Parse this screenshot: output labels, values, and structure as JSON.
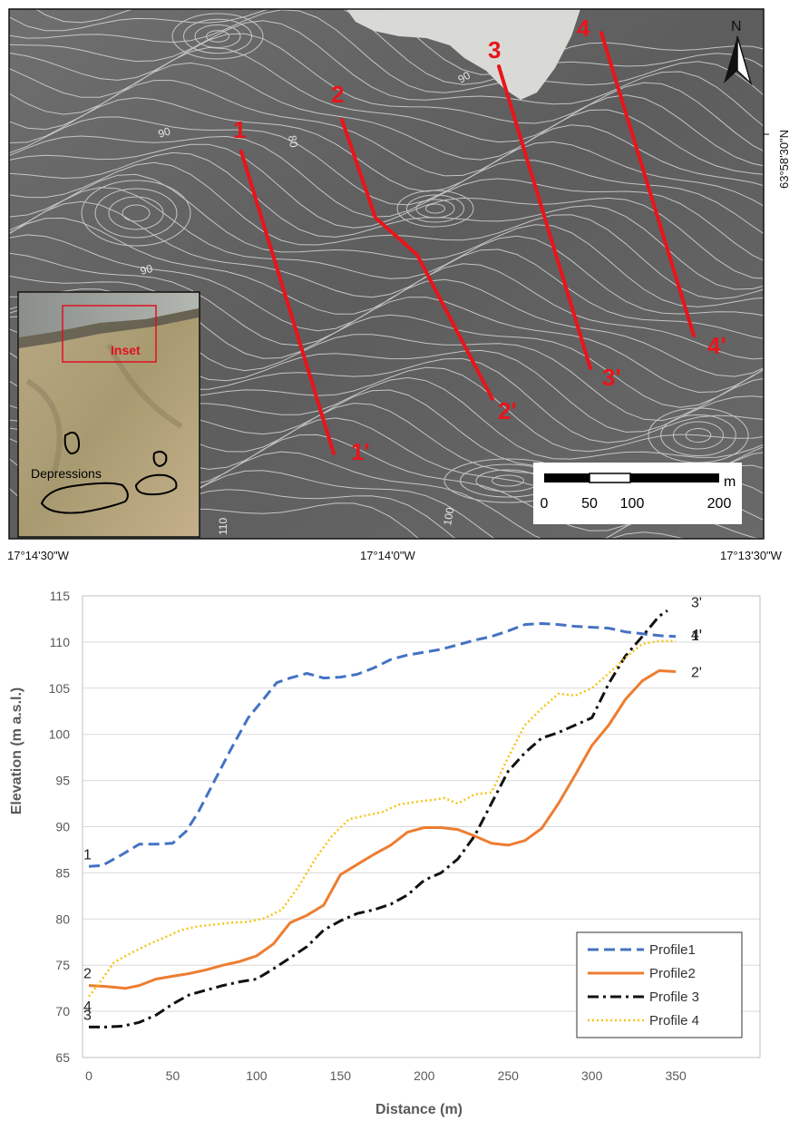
{
  "map": {
    "lon_labels": [
      "17°14'30\"W",
      "17°14'0\"W",
      "17°13'30\"W"
    ],
    "lat_label": "63°58'30\"N",
    "north_label": "N",
    "profile_lines": [
      {
        "start": "1",
        "end": "1'"
      },
      {
        "start": "2",
        "end": "2'"
      },
      {
        "start": "3",
        "end": "3'"
      },
      {
        "start": "4",
        "end": "4'"
      }
    ],
    "contour_labels": [
      "90",
      "80",
      "90",
      "100",
      "110",
      "90"
    ],
    "scale_bar": {
      "unit": "m",
      "ticks": [
        "0",
        "50",
        "100",
        "200"
      ]
    },
    "inset_map": {
      "inset_label": "Inset",
      "feature_label": "Depressions"
    },
    "colors": {
      "profile_line": "#e8151b",
      "inset_box": "#e01020",
      "depression_outline": "#000000"
    }
  },
  "chart_data": {
    "type": "line",
    "xlabel": "Distance (m)",
    "ylabel": "Elevation (m a.s.l.)",
    "xlim": [
      0,
      350
    ],
    "ylim": [
      65,
      115
    ],
    "xticks": [
      0,
      50,
      100,
      150,
      200,
      250,
      300,
      350
    ],
    "yticks": [
      65,
      70,
      75,
      80,
      85,
      90,
      95,
      100,
      105,
      110,
      115
    ],
    "grid": "horizontal",
    "legend_position": "bottom-right",
    "series": [
      {
        "name": "Profile1",
        "color": "#4472c4",
        "dash": "dashed",
        "start_label": "1",
        "end_label": "1'",
        "x": [
          0,
          8,
          20,
          30,
          40,
          50,
          58,
          65,
          75,
          85,
          95,
          105,
          112,
          120,
          130,
          140,
          150,
          160,
          170,
          180,
          190,
          200,
          210,
          220,
          230,
          240,
          250,
          260,
          270,
          280,
          290,
          300,
          310,
          320,
          330,
          340,
          350
        ],
        "y": [
          85.7,
          85.8,
          87.0,
          88.1,
          88.1,
          88.2,
          89.5,
          91.5,
          95.0,
          98.5,
          101.8,
          104.0,
          105.6,
          106.1,
          106.6,
          106.1,
          106.2,
          106.5,
          107.2,
          108.1,
          108.6,
          108.9,
          109.2,
          109.7,
          110.2,
          110.6,
          111.2,
          111.9,
          112.0,
          111.9,
          111.7,
          111.6,
          111.5,
          111.1,
          110.9,
          110.7,
          110.6
        ]
      },
      {
        "name": "Profile2",
        "color": "#ed7d31",
        "dash": "solid",
        "start_label": "2",
        "end_label": "2'",
        "x": [
          0,
          10,
          22,
          30,
          40,
          50,
          60,
          70,
          80,
          90,
          100,
          110,
          120,
          130,
          140,
          150,
          160,
          170,
          180,
          190,
          200,
          210,
          220,
          230,
          240,
          250,
          260,
          270,
          280,
          290,
          300,
          310,
          320,
          330,
          340,
          350
        ],
        "y": [
          72.8,
          72.7,
          72.5,
          72.8,
          73.5,
          73.8,
          74.1,
          74.5,
          75.0,
          75.4,
          76.0,
          77.3,
          79.6,
          80.4,
          81.5,
          84.8,
          85.9,
          87.0,
          88.0,
          89.4,
          89.9,
          89.9,
          89.7,
          89.0,
          88.2,
          88.0,
          88.5,
          89.8,
          92.5,
          95.6,
          98.8,
          101.0,
          103.8,
          105.8,
          106.9,
          106.8
        ]
      },
      {
        "name": "Profile 3",
        "color": "#111111",
        "dash": "dashdot",
        "start_label": "3",
        "end_label": "3'",
        "x": [
          0,
          10,
          20,
          30,
          40,
          50,
          60,
          70,
          80,
          90,
          100,
          110,
          120,
          130,
          140,
          150,
          160,
          170,
          180,
          190,
          200,
          210,
          220,
          230,
          240,
          250,
          260,
          270,
          280,
          290,
          300,
          310,
          320,
          330,
          340,
          345
        ],
        "y": [
          68.3,
          68.3,
          68.4,
          68.8,
          69.6,
          70.8,
          71.8,
          72.3,
          72.8,
          73.2,
          73.5,
          74.6,
          75.8,
          77.0,
          78.8,
          79.8,
          80.6,
          81.0,
          81.6,
          82.6,
          84.2,
          85.0,
          86.5,
          89.0,
          92.5,
          96.0,
          98.0,
          99.6,
          100.2,
          101.0,
          101.8,
          105.5,
          108.5,
          110.6,
          112.8,
          113.4
        ]
      },
      {
        "name": "Profile 4",
        "color": "#f5c518",
        "dash": "dotted",
        "start_label": "4",
        "end_label": "4'",
        "x": [
          0,
          8,
          15,
          25,
          35,
          45,
          55,
          65,
          75,
          85,
          95,
          105,
          115,
          125,
          135,
          145,
          155,
          165,
          175,
          185,
          195,
          205,
          212,
          220,
          230,
          240,
          250,
          260,
          270,
          280,
          290,
          300,
          310,
          320,
          330,
          340,
          350
        ],
        "y": [
          71.6,
          73.5,
          75.3,
          76.3,
          77.2,
          78.0,
          78.8,
          79.2,
          79.4,
          79.6,
          79.7,
          80.1,
          81.0,
          83.5,
          86.5,
          89.0,
          90.8,
          91.2,
          91.6,
          92.4,
          92.7,
          92.9,
          93.1,
          92.5,
          93.5,
          93.7,
          97.5,
          101.0,
          102.8,
          104.4,
          104.2,
          105.0,
          106.6,
          108.3,
          109.8,
          110.1,
          110.1
        ]
      }
    ]
  }
}
